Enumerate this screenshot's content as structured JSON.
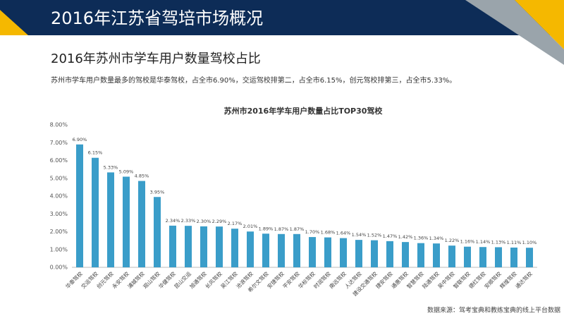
{
  "header": {
    "title": "2016年江苏省驾培市场概况"
  },
  "subtitle": "2016年苏州市学车用户数量驾校占比",
  "description": "苏州市学车用户数量最多的驾校是华泰驾校，占全市6.90%，交运驾校排第二，占全市6.15%，创元驾校排第三，占全市5.33%。",
  "source": "数据来源：驾考宝典和教练宝典的线上平台数据",
  "chart_data": {
    "type": "bar",
    "title": "苏州市2016年学车用户数量占比TOP30驾校",
    "categories": [
      "华泰驾校",
      "交运驾校",
      "创元驾校",
      "永安驾校",
      "浦城驾校",
      "观山驾校",
      "华健驾校",
      "昆山交运",
      "旭通驾校",
      "长风驾校",
      "吴江驾校",
      "沧浪驾校",
      "希尔文驾校",
      "安捷驾校",
      "平安驾校",
      "华标驾校",
      "时润驾校",
      "南远驾校",
      "人达驾校",
      "建设交通驾校",
      "捷安驾校",
      "通惠驾校",
      "智慧驾校",
      "陆通驾校",
      "吴中驾校",
      "智联驾校",
      "德红驾校",
      "安顺驾校",
      "辉煌驾校",
      "通达驾校"
    ],
    "values": [
      6.9,
      6.15,
      5.33,
      5.09,
      4.85,
      3.95,
      2.34,
      2.33,
      2.3,
      2.29,
      2.17,
      2.01,
      1.89,
      1.87,
      1.87,
      1.7,
      1.68,
      1.64,
      1.54,
      1.52,
      1.47,
      1.42,
      1.36,
      1.34,
      1.22,
      1.16,
      1.14,
      1.13,
      1.11,
      1.1
    ],
    "value_labels": [
      "6.90%",
      "6.15%",
      "5.33%",
      "5.09%",
      "4.85%",
      "3.95%",
      "2.34%",
      "2.33%",
      "2.30%",
      "2.29%",
      "2.17%",
      "2.01%",
      "1.89%",
      "1.87%",
      "1.87%",
      "1.70%",
      "1.68%",
      "1.64%",
      "1.54%",
      "1.52%",
      "1.47%",
      "1.42%",
      "1.36%",
      "1.34%",
      "1.22%",
      "1.16%",
      "1.14%",
      "1.13%",
      "1.11%",
      "1.10%"
    ],
    "color": "#3a9dc9",
    "ylim": [
      0,
      8
    ],
    "yticks": [
      {
        "value": 0,
        "label": "0.00%"
      },
      {
        "value": 1,
        "label": "1.00%"
      },
      {
        "value": 2,
        "label": "2.00%"
      },
      {
        "value": 3,
        "label": "3.00%"
      },
      {
        "value": 4,
        "label": "4.00%"
      },
      {
        "value": 5,
        "label": "5.00%"
      },
      {
        "value": 6,
        "label": "6.00%"
      },
      {
        "value": 7,
        "label": "7.00%"
      },
      {
        "value": 8,
        "label": "8.00%"
      }
    ],
    "grid": false
  }
}
